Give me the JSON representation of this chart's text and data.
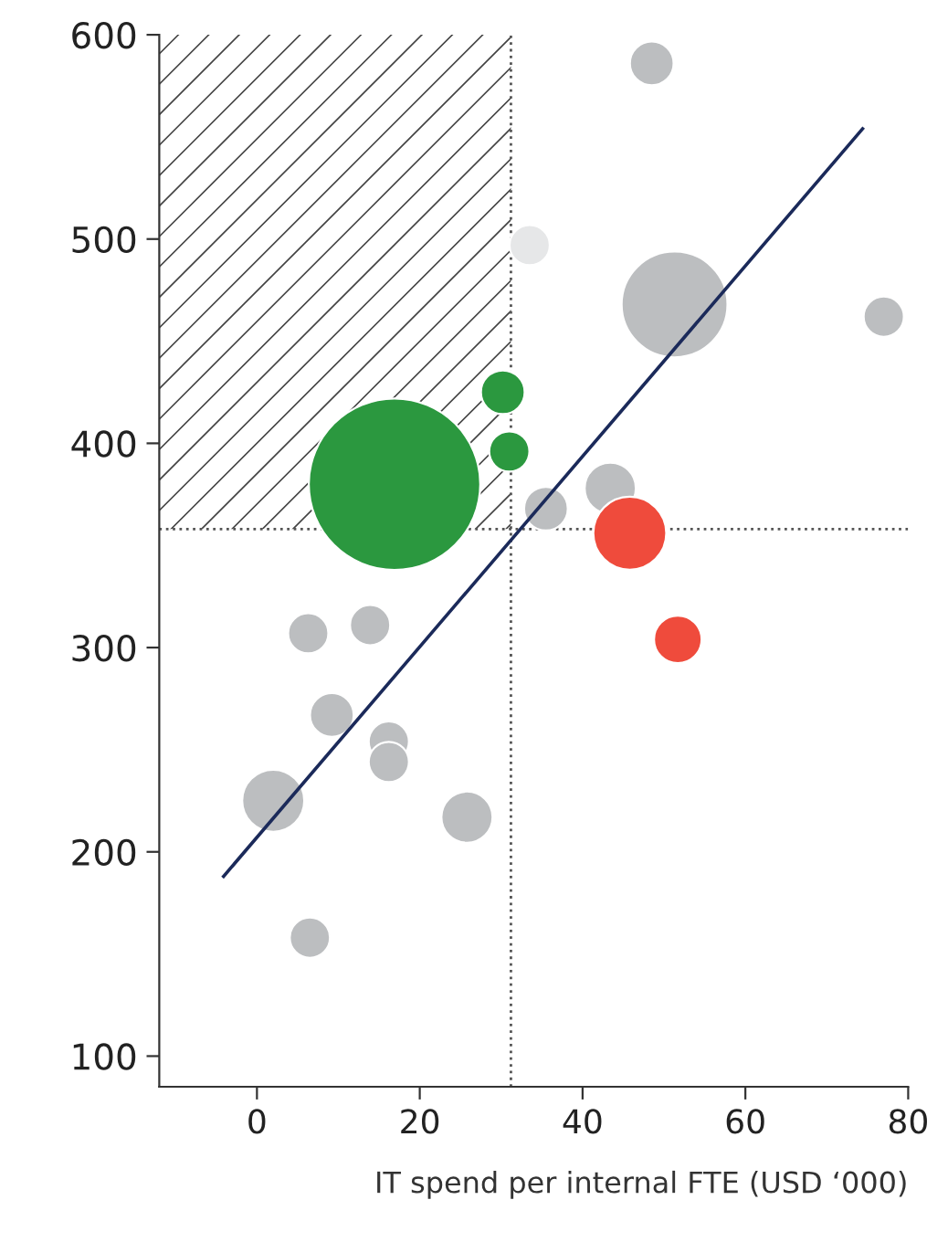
{
  "chart_data": {
    "type": "bubble",
    "xlabel": "IT spend per internal FTE (USD ‘000)",
    "xlim": [
      -12,
      80
    ],
    "xticks": [
      0,
      20,
      40,
      60,
      80
    ],
    "ylim": [
      85,
      600
    ],
    "yticks": [
      100,
      200,
      300,
      400,
      500,
      600
    ],
    "grid": false,
    "series": [
      {
        "color": "#bcbec0",
        "x": [
          48.5,
          51.3,
          77,
          43.4,
          35.5,
          6.3,
          13.9,
          9.2,
          16.2,
          16.2,
          2,
          25.8,
          6.5
        ],
        "values": [
          586,
          468,
          462,
          378,
          368,
          307,
          311,
          267,
          254,
          244,
          225,
          217,
          158
        ],
        "sizes": [
          0.065,
          0.381,
          0.055,
          0.089,
          0.065,
          0.055,
          0.055,
          0.065,
          0.055,
          0.055,
          0.131,
          0.089,
          0.055
        ]
      },
      {
        "color": "#e6e7e8",
        "x": [
          33.5
        ],
        "values": [
          497
        ],
        "sizes": [
          0.055
        ]
      },
      {
        "color": "#2b983f",
        "x": [
          16.9,
          30.2,
          31
        ],
        "values": [
          380,
          425,
          396
        ],
        "sizes": [
          1,
          0.065,
          0.055
        ]
      },
      {
        "color": "#ef4b3c",
        "x": [
          45.8,
          51.7
        ],
        "values": [
          356,
          304
        ],
        "sizes": [
          0.181,
          0.077
        ]
      },
      {
        "type": "line",
        "color": "#1b2a5a",
        "x": [
          -4.1,
          74.4
        ],
        "values": [
          188,
          554
        ]
      }
    ],
    "ref_lines": [
      {
        "axis": "x",
        "value": 31.2,
        "line_style": "dotted",
        "color": "#555555"
      },
      {
        "axis": "y",
        "value": 358,
        "line_style": "dotted",
        "color": "#555555"
      }
    ],
    "bands": [
      {
        "axis": "y",
        "from": 358,
        "to": 600,
        "color": "#444444"
      }
    ]
  }
}
